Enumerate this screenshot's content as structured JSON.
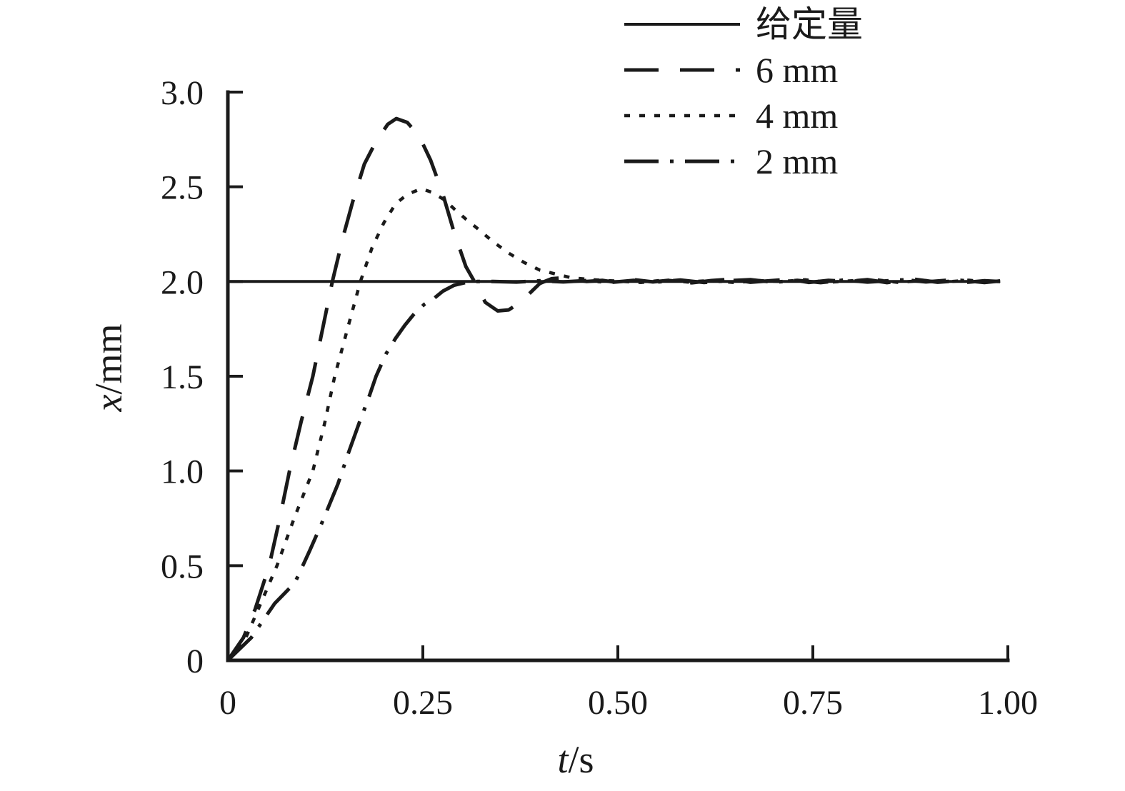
{
  "figure": {
    "background": "#ffffff",
    "ink": "#1a1a1a"
  },
  "chart_data": {
    "type": "line",
    "title": "",
    "xlabel_var": "t",
    "xlabel_unit": "/s",
    "ylabel_var": "x",
    "ylabel_unit": "/mm",
    "xlim": [
      0,
      1
    ],
    "ylim": [
      0,
      3
    ],
    "grid": false,
    "legend_position": "top-right",
    "x_ticks": {
      "values": [
        0,
        0.25,
        0.5,
        0.75,
        1.0
      ],
      "labels": [
        "0",
        "0.25",
        "0.50",
        "0.75",
        "1.00"
      ]
    },
    "y_ticks": {
      "values": [
        0,
        0.5,
        1.0,
        1.5,
        2.0,
        2.5,
        3.0
      ],
      "labels": [
        "0",
        "0.5",
        "1.0",
        "1.5",
        "2.0",
        "2.5",
        "3.0"
      ]
    },
    "dash_patterns": {
      "solid": "",
      "longdash": "48 30",
      "dotted": "8 13",
      "dashdot": "48 16 5 16"
    },
    "series": [
      {
        "id": "setpoint",
        "label": "给定量",
        "style": "solid",
        "width": 4,
        "points": [
          [
            0,
            2.0
          ],
          [
            0.99,
            2.0
          ]
        ]
      },
      {
        "id": "6mm",
        "label": "6 mm",
        "style": "longdash",
        "width": 5,
        "overshoot_peak": {
          "t": 0.216,
          "x": 2.86
        },
        "undershoot_min": {
          "t": 0.346,
          "x": 1.845
        },
        "points": [
          [
            0,
            0
          ],
          [
            0.02,
            0.12
          ],
          [
            0.035,
            0.27
          ],
          [
            0.053,
            0.5
          ],
          [
            0.066,
            0.74
          ],
          [
            0.079,
            1.0
          ],
          [
            0.094,
            1.26
          ],
          [
            0.109,
            1.5
          ],
          [
            0.122,
            1.76
          ],
          [
            0.134,
            2.0
          ],
          [
            0.148,
            2.24
          ],
          [
            0.16,
            2.42
          ],
          [
            0.175,
            2.62
          ],
          [
            0.19,
            2.74
          ],
          [
            0.205,
            2.83
          ],
          [
            0.216,
            2.86
          ],
          [
            0.23,
            2.84
          ],
          [
            0.245,
            2.77
          ],
          [
            0.26,
            2.64
          ],
          [
            0.275,
            2.47
          ],
          [
            0.29,
            2.26
          ],
          [
            0.305,
            2.08
          ],
          [
            0.316,
            2.0
          ],
          [
            0.33,
            1.89
          ],
          [
            0.346,
            1.845
          ],
          [
            0.36,
            1.85
          ],
          [
            0.375,
            1.89
          ],
          [
            0.39,
            1.95
          ],
          [
            0.4,
            1.99
          ],
          [
            0.415,
            2.015
          ],
          [
            0.43,
            2.02
          ],
          [
            0.445,
            2.01
          ],
          [
            0.46,
            2.0
          ],
          [
            0.48,
            2.006
          ],
          [
            0.5,
            1.994
          ],
          [
            0.52,
            2.01
          ],
          [
            0.545,
            1.998
          ],
          [
            0.57,
            2.008
          ],
          [
            0.595,
            1.993
          ],
          [
            0.62,
            2.005
          ],
          [
            0.645,
            2.012
          ],
          [
            0.67,
            1.996
          ],
          [
            0.695,
            2.004
          ],
          [
            0.72,
            2.012
          ],
          [
            0.745,
            1.995
          ],
          [
            0.77,
            2.006
          ],
          [
            0.795,
            2.0
          ],
          [
            0.82,
            2.01
          ],
          [
            0.845,
            1.994
          ],
          [
            0.87,
            2.008
          ],
          [
            0.895,
            1.998
          ],
          [
            0.92,
            2.006
          ],
          [
            0.945,
            1.995
          ],
          [
            0.97,
            2.004
          ],
          [
            0.99,
            2.0
          ]
        ]
      },
      {
        "id": "4mm",
        "label": "4 mm",
        "style": "dotted",
        "width": 4.5,
        "overshoot_peak": {
          "t": 0.248,
          "x": 2.49
        },
        "points": [
          [
            0,
            0
          ],
          [
            0.02,
            0.09
          ],
          [
            0.04,
            0.28
          ],
          [
            0.063,
            0.5
          ],
          [
            0.085,
            0.75
          ],
          [
            0.109,
            1.0
          ],
          [
            0.124,
            1.25
          ],
          [
            0.137,
            1.5
          ],
          [
            0.154,
            1.76
          ],
          [
            0.17,
            2.0
          ],
          [
            0.185,
            2.18
          ],
          [
            0.2,
            2.31
          ],
          [
            0.215,
            2.41
          ],
          [
            0.23,
            2.46
          ],
          [
            0.248,
            2.49
          ],
          [
            0.262,
            2.47
          ],
          [
            0.278,
            2.43
          ],
          [
            0.291,
            2.38
          ],
          [
            0.305,
            2.33
          ],
          [
            0.32,
            2.28
          ],
          [
            0.34,
            2.21
          ],
          [
            0.36,
            2.15
          ],
          [
            0.38,
            2.1
          ],
          [
            0.4,
            2.06
          ],
          [
            0.42,
            2.04
          ],
          [
            0.44,
            2.02
          ],
          [
            0.46,
            2.012
          ],
          [
            0.48,
            2.006
          ],
          [
            0.5,
            2.002
          ],
          [
            0.53,
            1.995
          ],
          [
            0.56,
            2.008
          ],
          [
            0.59,
            1.997
          ],
          [
            0.62,
            2.006
          ],
          [
            0.65,
            1.994
          ],
          [
            0.68,
            2.005
          ],
          [
            0.71,
            2.0
          ],
          [
            0.74,
            2.009
          ],
          [
            0.77,
            1.996
          ],
          [
            0.8,
            2.004
          ],
          [
            0.83,
            2.01
          ],
          [
            0.86,
            1.995
          ],
          [
            0.89,
            2.006
          ],
          [
            0.92,
            1.998
          ],
          [
            0.95,
            2.007
          ],
          [
            0.975,
            1.996
          ],
          [
            0.99,
            2.002
          ]
        ]
      },
      {
        "id": "2mm",
        "label": "2 mm",
        "style": "dashdot",
        "width": 5,
        "points": [
          [
            0,
            0
          ],
          [
            0.03,
            0.12
          ],
          [
            0.06,
            0.3
          ],
          [
            0.086,
            0.41
          ],
          [
            0.105,
            0.58
          ],
          [
            0.12,
            0.72
          ],
          [
            0.141,
            0.93
          ],
          [
            0.155,
            1.1
          ],
          [
            0.169,
            1.26
          ],
          [
            0.18,
            1.38
          ],
          [
            0.19,
            1.5
          ],
          [
            0.203,
            1.62
          ],
          [
            0.215,
            1.7
          ],
          [
            0.227,
            1.77
          ],
          [
            0.239,
            1.83
          ],
          [
            0.252,
            1.88
          ],
          [
            0.264,
            1.91
          ],
          [
            0.276,
            1.95
          ],
          [
            0.29,
            1.98
          ],
          [
            0.305,
            1.995
          ],
          [
            0.32,
            2.0
          ],
          [
            0.34,
            2.0
          ],
          [
            0.37,
            1.997
          ],
          [
            0.4,
            2.004
          ],
          [
            0.43,
            1.998
          ],
          [
            0.46,
            2.005
          ],
          [
            0.49,
            1.995
          ],
          [
            0.52,
            2.006
          ],
          [
            0.55,
            1.997
          ],
          [
            0.58,
            2.008
          ],
          [
            0.61,
            1.995
          ],
          [
            0.64,
            2.004
          ],
          [
            0.67,
            2.01
          ],
          [
            0.7,
            1.996
          ],
          [
            0.73,
            2.006
          ],
          [
            0.76,
            1.994
          ],
          [
            0.79,
            2.008
          ],
          [
            0.82,
            1.997
          ],
          [
            0.85,
            2.005
          ],
          [
            0.88,
            2.012
          ],
          [
            0.91,
            1.996
          ],
          [
            0.94,
            2.006
          ],
          [
            0.97,
            1.995
          ],
          [
            0.99,
            2.003
          ]
        ]
      }
    ]
  }
}
